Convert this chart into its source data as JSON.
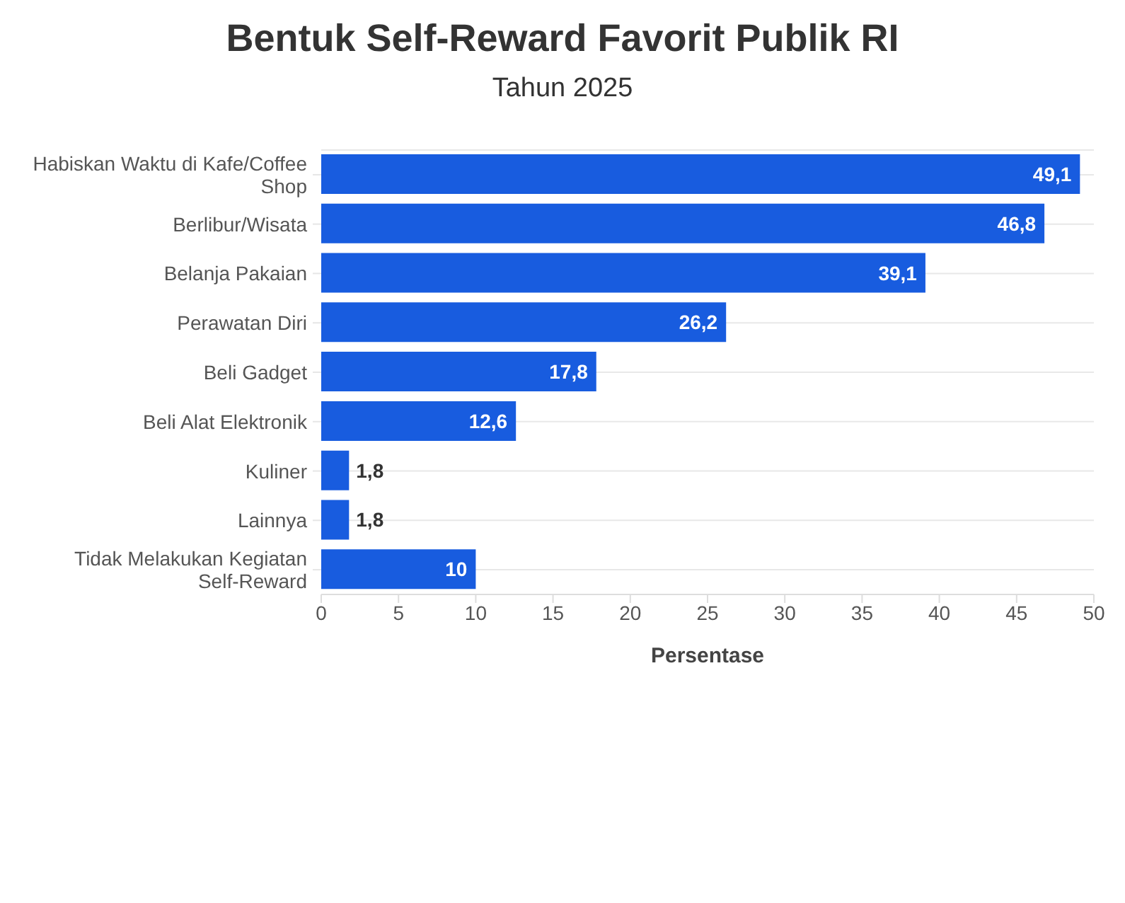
{
  "chart_data": {
    "type": "bar",
    "title": "Bentuk Self-Reward Favorit Publik RI",
    "subtitle": "Tahun 2025",
    "xlabel": "Persentase",
    "orientation": "horizontal",
    "categories": [
      "Habiskan Waktu di Kafe/Coffee Shop",
      "Berlibur/Wisata",
      "Belanja Pakaian",
      "Perawatan Diri",
      "Beli Gadget",
      "Beli Alat Elektronik",
      "Kuliner",
      "Lainnya",
      "Tidak Melakukan Kegiatan Self-Reward"
    ],
    "values": [
      49.1,
      46.8,
      39.1,
      26.2,
      17.8,
      12.6,
      1.8,
      1.8,
      10
    ],
    "value_labels": [
      "49,1",
      "46,8",
      "39,1",
      "26,2",
      "17,8",
      "12,6",
      "1,8",
      "1,8",
      "10"
    ],
    "color": "#185cdf",
    "xlim": [
      0,
      50
    ],
    "xticks": [
      0,
      5,
      10,
      15,
      20,
      25,
      30,
      35,
      40,
      45,
      50
    ],
    "grid": "y"
  }
}
